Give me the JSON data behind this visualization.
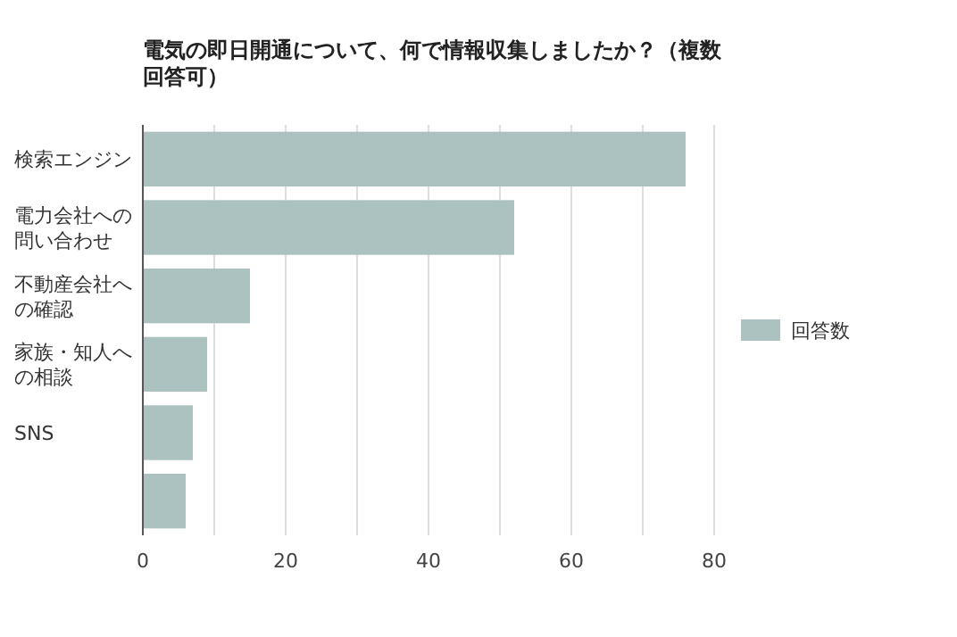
{
  "chart_data": {
    "type": "bar",
    "orientation": "horizontal",
    "title": "電気の即日開通について、何で情報収集しましたか？（複数回答可）",
    "categories": [
      "検索エンジン",
      "電力会社への問い合わせ",
      "不動産会社への確認",
      "家族・知人への相談",
      "SNS",
      null
    ],
    "series": [
      {
        "name": "回答数",
        "color": "#abc2c1",
        "values": [
          76,
          52,
          15,
          9,
          7,
          6
        ]
      }
    ],
    "xlim": [
      0,
      80
    ],
    "xticks": [
      0,
      {
        "value": 10,
        "label": null
      },
      20,
      {
        "value": 30,
        "label": null
      },
      40,
      {
        "value": 50,
        "label": null
      },
      60,
      {
        "value": 70,
        "label": null
      },
      80
    ],
    "grid": "x",
    "legend": "right"
  }
}
